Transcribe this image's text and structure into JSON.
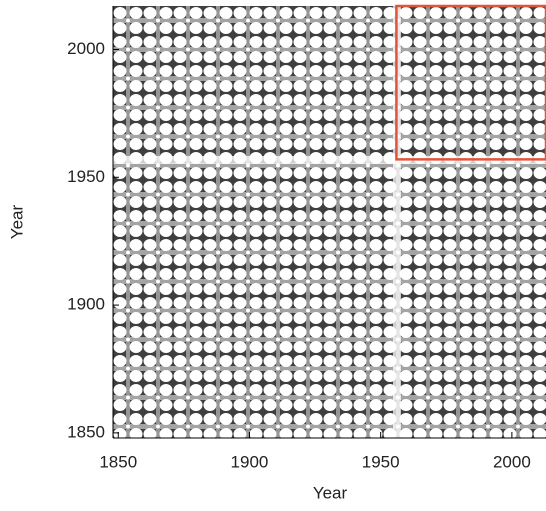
{
  "chart_data": {
    "type": "recurrence",
    "x_label": "Year",
    "y_label": "Year",
    "xlim": [
      1848,
      2013
    ],
    "ylim": [
      1848,
      2017
    ],
    "xticks": [
      1850,
      1900,
      1950,
      2000
    ],
    "yticks": [
      1850,
      1900,
      1950,
      2000
    ],
    "highlight": {
      "xlim": [
        1956,
        2013
      ],
      "ylim": [
        1957,
        2017
      ],
      "color": "#e0553a"
    }
  }
}
